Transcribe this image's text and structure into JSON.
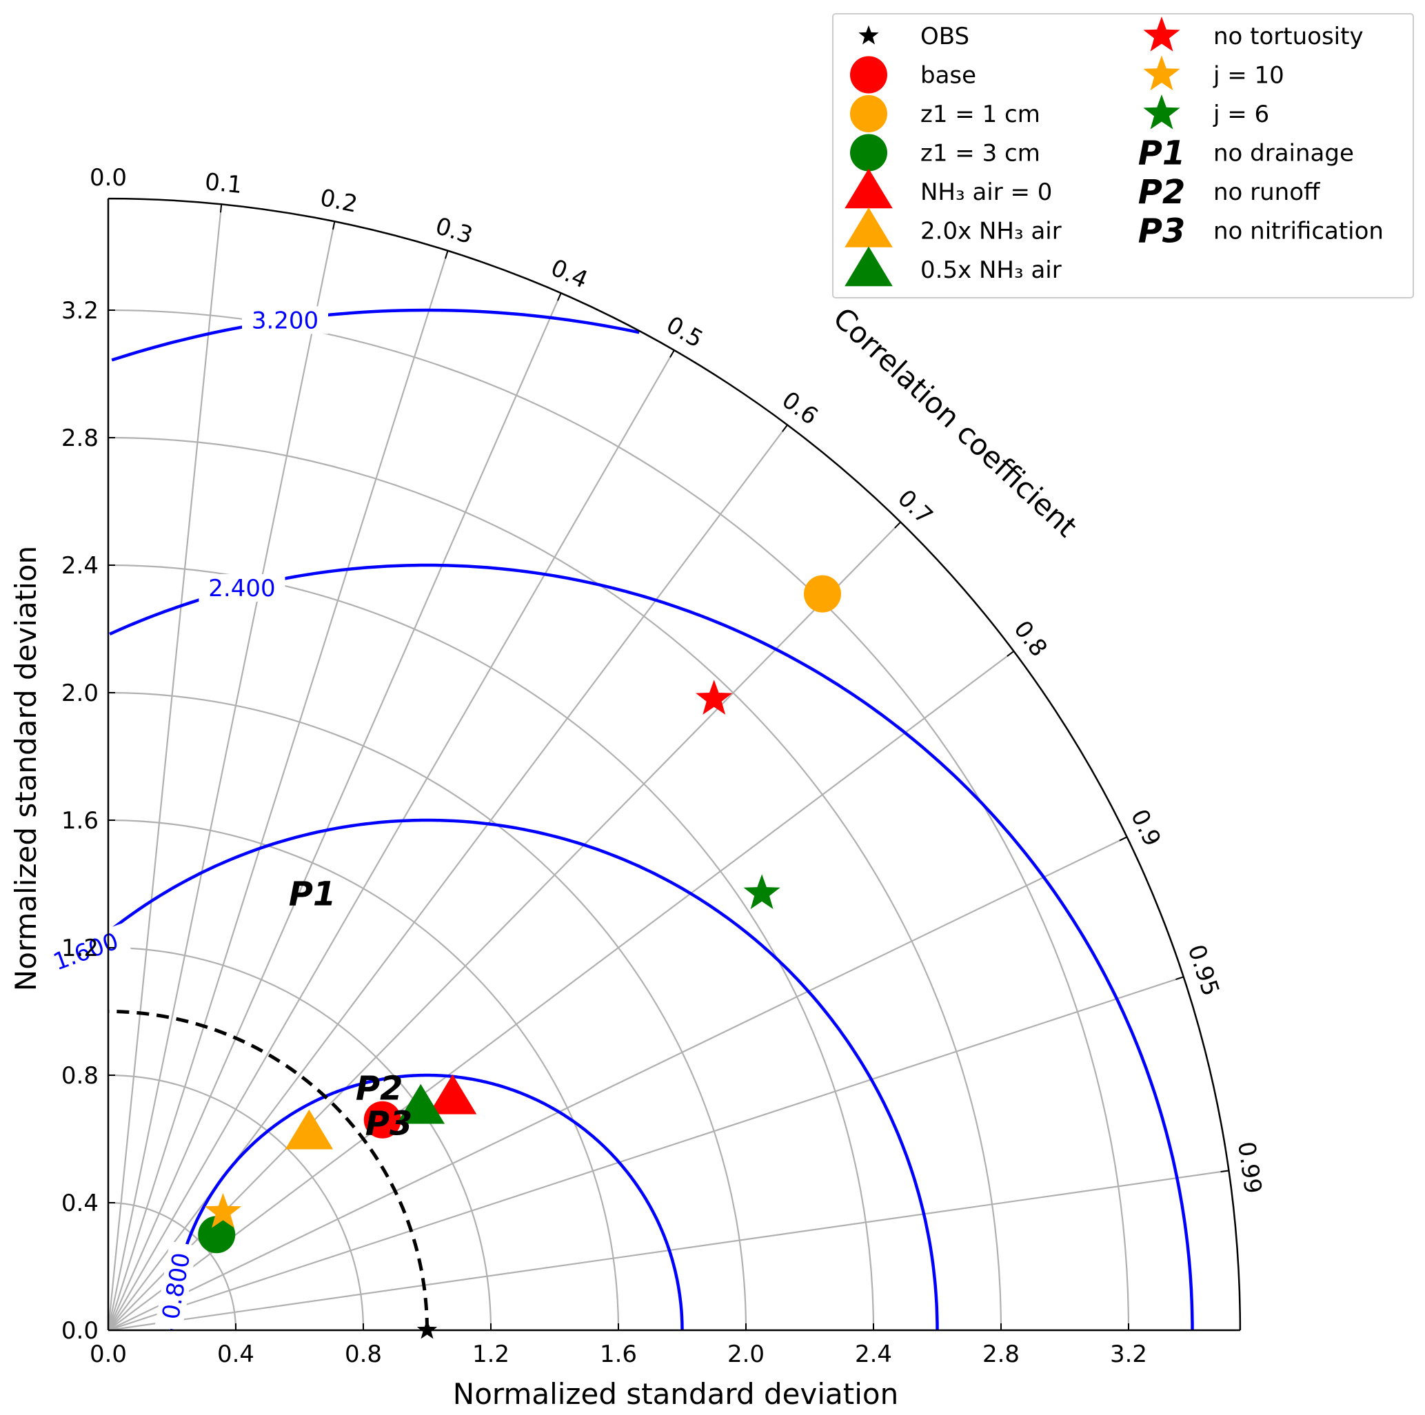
{
  "chart_data": {
    "type": "scatter",
    "subtype": "taylor-diagram",
    "xlabel": "Normalized standard deviation",
    "ylabel": "Normalized standard deviation",
    "arc_label": "Correlation coefficient",
    "std_max": 3.55,
    "std_ticks": [
      0.0,
      0.4,
      0.8,
      1.2,
      1.6,
      2.0,
      2.4,
      2.8,
      3.2
    ],
    "std_tick_labels": [
      "0.0",
      "0.4",
      "0.8",
      "1.2",
      "1.6",
      "2.0",
      "2.4",
      "2.8",
      "3.2"
    ],
    "std_gridlines": [
      0.4,
      0.8,
      1.2,
      1.6,
      2.0,
      2.4,
      2.8,
      3.2
    ],
    "corr_ticks": [
      0.0,
      0.1,
      0.2,
      0.3,
      0.4,
      0.5,
      0.6,
      0.7,
      0.8,
      0.9,
      0.95,
      0.99
    ],
    "corr_tick_labels": [
      "0.0",
      "0.1",
      "0.2",
      "0.3",
      "0.4",
      "0.5",
      "0.6",
      "0.7",
      "0.8",
      "0.9",
      "0.95",
      "0.99"
    ],
    "grid": true,
    "reference": {
      "std": 1.0,
      "style": "dashed",
      "color": "#000000"
    },
    "rms_contours": [
      {
        "value": 0.8,
        "label": "0.800"
      },
      {
        "value": 1.6,
        "label": "1.600"
      },
      {
        "value": 2.4,
        "label": "2.400"
      },
      {
        "value": 3.2,
        "label": "3.200"
      }
    ],
    "series": [
      {
        "name": "OBS",
        "marker": "star",
        "color": "#000000",
        "x": 1.0,
        "y": 0.0
      },
      {
        "name": "base",
        "marker": "circle",
        "color": "#ff0000",
        "x": 0.86,
        "y": 0.66
      },
      {
        "name": "z1 = 1 cm",
        "marker": "circle",
        "color": "#ffa500",
        "x": 2.24,
        "y": 2.31
      },
      {
        "name": "z1 = 3 cm",
        "marker": "circle",
        "color": "#008000",
        "x": 0.34,
        "y": 0.3
      },
      {
        "name": "NH₃ air = 0",
        "marker": "triangle",
        "color": "#ff0000",
        "x": 1.08,
        "y": 0.73
      },
      {
        "name": "2.0x NH₃ air",
        "marker": "triangle",
        "color": "#ffa500",
        "x": 0.63,
        "y": 0.62
      },
      {
        "name": "0.5x NH₃ air",
        "marker": "triangle",
        "color": "#008000",
        "x": 0.98,
        "y": 0.7
      },
      {
        "name": "no tortuosity",
        "marker": "star",
        "color": "#ff0000",
        "x": 1.9,
        "y": 1.98
      },
      {
        "name": "j = 10",
        "marker": "star",
        "color": "#ffa500",
        "x": 0.36,
        "y": 0.37
      },
      {
        "name": "j = 6",
        "marker": "star",
        "color": "#008000",
        "x": 2.05,
        "y": 1.37
      },
      {
        "name": "no drainage",
        "marker": "text",
        "symbol": "P1",
        "color": "#000000",
        "x": 0.64,
        "y": 1.37
      },
      {
        "name": "no runoff",
        "marker": "text",
        "symbol": "P2",
        "color": "#000000",
        "x": 0.85,
        "y": 0.76
      },
      {
        "name": "no nitrification",
        "marker": "text",
        "symbol": "P3",
        "color": "#000000",
        "x": 0.88,
        "y": 0.65
      }
    ],
    "legend_placement": "top-right"
  },
  "colors": {
    "grid": "#b0b0b0",
    "contour": "#0000ff",
    "axis": "#000000"
  }
}
